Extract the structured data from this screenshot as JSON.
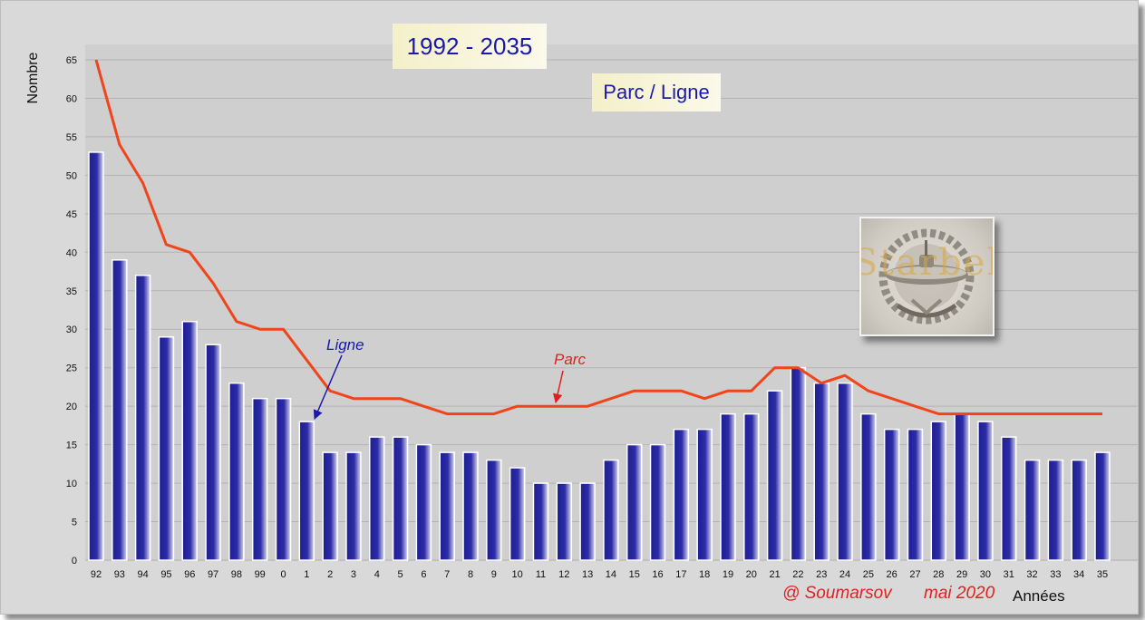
{
  "chart_data": {
    "type": "bar",
    "title": "1992 - 2035",
    "subtitle": "Parc / Ligne",
    "xlabel": "Années",
    "ylabel": "Nombre",
    "ylim": [
      0,
      65
    ],
    "yticks": [
      0,
      5,
      10,
      15,
      20,
      25,
      30,
      35,
      40,
      45,
      50,
      55,
      60,
      65
    ],
    "grid": true,
    "categories": [
      "92",
      "93",
      "94",
      "95",
      "96",
      "97",
      "98",
      "99",
      "0",
      "1",
      "2",
      "3",
      "4",
      "5",
      "6",
      "7",
      "8",
      "9",
      "10",
      "11",
      "12",
      "13",
      "14",
      "15",
      "16",
      "17",
      "18",
      "19",
      "20",
      "21",
      "22",
      "23",
      "24",
      "25",
      "26",
      "27",
      "28",
      "29",
      "30",
      "31",
      "32",
      "33",
      "34",
      "35"
    ],
    "series": [
      {
        "name": "Ligne",
        "kind": "bar",
        "color": "#1a1a8c",
        "values": [
          53,
          39,
          37,
          29,
          31,
          28,
          23,
          21,
          21,
          18,
          14,
          14,
          16,
          16,
          15,
          14,
          14,
          13,
          12,
          10,
          10,
          10,
          13,
          15,
          15,
          17,
          17,
          19,
          19,
          22,
          25,
          23,
          23,
          19,
          17,
          17,
          18,
          19,
          18,
          16,
          13,
          13,
          13,
          14
        ]
      },
      {
        "name": "Parc",
        "kind": "line",
        "color": "#f0441b",
        "values": [
          65,
          54,
          49,
          41,
          40,
          36,
          31,
          30,
          30,
          26,
          22,
          21,
          21,
          21,
          20,
          19,
          19,
          19,
          20,
          20,
          20,
          20,
          21,
          22,
          22,
          22,
          21,
          22,
          22,
          25,
          25,
          23,
          24,
          22,
          21,
          20,
          19,
          19,
          19,
          19,
          19,
          19,
          19,
          19
        ]
      }
    ],
    "annotations": [
      {
        "text": "Ligne",
        "color": "#1a1aa8",
        "points_to_category": "1",
        "points_to_series": "Ligne"
      },
      {
        "text": "Parc",
        "color": "#e02020",
        "points_to_category": "11",
        "points_to_series": "Parc"
      }
    ]
  },
  "credits": {
    "author": "@ Soumarsov",
    "date": "mai 2020"
  },
  "emblem": {
    "icon": "submarine-insignia-icon",
    "text": "Starbel"
  },
  "colors": {
    "plot_background": "#cfcfcf",
    "frame_background": "#d9d9d9",
    "gridline": "#b3b3b3",
    "title_text": "#1a1aa8"
  }
}
